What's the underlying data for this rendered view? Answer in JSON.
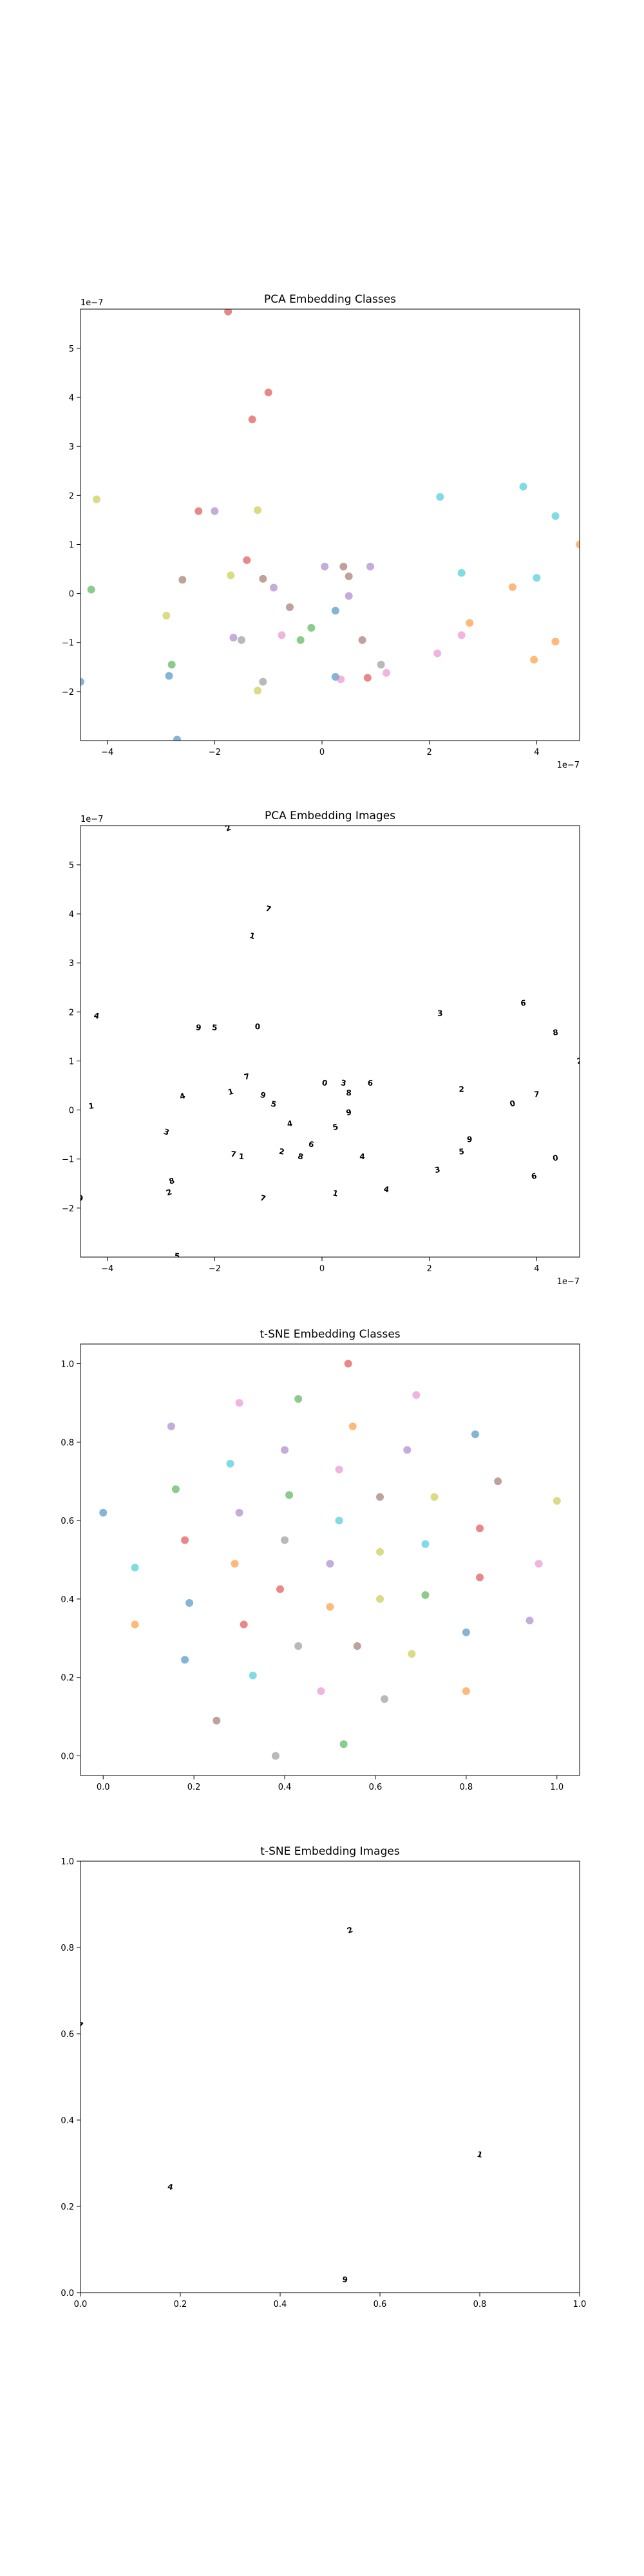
{
  "chart_data": [
    {
      "type": "scatter",
      "title": "PCA Embedding Classes",
      "x_multiplier_label": "1e−7",
      "y_multiplier_label": "1e−7",
      "xlim": [
        -4.5,
        4.8
      ],
      "ylim": [
        -3.0,
        5.8
      ],
      "xticks": [
        -4,
        -2,
        0,
        2,
        4
      ],
      "xtick_labels": [
        "−4",
        "−2",
        "0",
        "2",
        "4"
      ],
      "yticks": [
        -2,
        -1,
        0,
        1,
        2,
        3,
        4,
        5
      ],
      "ytick_labels": [
        "−2",
        "−1",
        "0",
        "1",
        "2",
        "3",
        "4",
        "5"
      ],
      "grid": false,
      "points": [
        {
          "x": -1.75,
          "y": 5.75,
          "color": "#d62728"
        },
        {
          "x": -1.0,
          "y": 4.1,
          "color": "#d62728"
        },
        {
          "x": -1.3,
          "y": 3.55,
          "color": "#d62728"
        },
        {
          "x": -4.2,
          "y": 1.92,
          "color": "#bcbd22"
        },
        {
          "x": -2.3,
          "y": 1.68,
          "color": "#d62728"
        },
        {
          "x": -2.0,
          "y": 1.68,
          "color": "#9467bd"
        },
        {
          "x": -1.2,
          "y": 1.7,
          "color": "#bcbd22"
        },
        {
          "x": 2.2,
          "y": 1.97,
          "color": "#17becf"
        },
        {
          "x": 3.75,
          "y": 2.18,
          "color": "#17becf"
        },
        {
          "x": 4.35,
          "y": 1.58,
          "color": "#17becf"
        },
        {
          "x": 4.8,
          "y": 1.0,
          "color": "#ff7f0e"
        },
        {
          "x": -1.4,
          "y": 0.68,
          "color": "#d62728"
        },
        {
          "x": -1.7,
          "y": 0.37,
          "color": "#bcbd22"
        },
        {
          "x": -2.6,
          "y": 0.28,
          "color": "#8c564b"
        },
        {
          "x": -1.1,
          "y": 0.3,
          "color": "#8c564b"
        },
        {
          "x": -0.9,
          "y": 0.12,
          "color": "#9467bd"
        },
        {
          "x": 0.05,
          "y": 0.55,
          "color": "#9467bd"
        },
        {
          "x": 0.4,
          "y": 0.55,
          "color": "#8c564b"
        },
        {
          "x": 0.9,
          "y": 0.55,
          "color": "#9467bd"
        },
        {
          "x": 0.5,
          "y": 0.35,
          "color": "#8c564b"
        },
        {
          "x": 2.6,
          "y": 0.42,
          "color": "#17becf"
        },
        {
          "x": 4.0,
          "y": 0.32,
          "color": "#17becf"
        },
        {
          "x": -4.3,
          "y": 0.08,
          "color": "#2ca02c"
        },
        {
          "x": -0.6,
          "y": -0.28,
          "color": "#8c564b"
        },
        {
          "x": 0.5,
          "y": -0.05,
          "color": "#9467bd"
        },
        {
          "x": 0.25,
          "y": -0.35,
          "color": "#1f77b4"
        },
        {
          "x": 3.55,
          "y": 0.13,
          "color": "#ff7f0e"
        },
        {
          "x": -2.9,
          "y": -0.45,
          "color": "#bcbd22"
        },
        {
          "x": -0.2,
          "y": -0.7,
          "color": "#2ca02c"
        },
        {
          "x": -0.4,
          "y": -0.95,
          "color": "#2ca02c"
        },
        {
          "x": -0.75,
          "y": -0.85,
          "color": "#e377c2"
        },
        {
          "x": -1.65,
          "y": -0.9,
          "color": "#9467bd"
        },
        {
          "x": -1.5,
          "y": -0.95,
          "color": "#7f7f7f"
        },
        {
          "x": 0.75,
          "y": -0.95,
          "color": "#8c564b"
        },
        {
          "x": 2.75,
          "y": -0.6,
          "color": "#ff7f0e"
        },
        {
          "x": 2.6,
          "y": -0.85,
          "color": "#e377c2"
        },
        {
          "x": 4.35,
          "y": -0.98,
          "color": "#ff7f0e"
        },
        {
          "x": 2.15,
          "y": -1.22,
          "color": "#e377c2"
        },
        {
          "x": 3.95,
          "y": -1.35,
          "color": "#ff7f0e"
        },
        {
          "x": -2.8,
          "y": -1.45,
          "color": "#2ca02c"
        },
        {
          "x": -2.85,
          "y": -1.68,
          "color": "#1f77b4"
        },
        {
          "x": -1.1,
          "y": -1.8,
          "color": "#7f7f7f"
        },
        {
          "x": -1.2,
          "y": -1.98,
          "color": "#bcbd22"
        },
        {
          "x": 0.25,
          "y": -1.7,
          "color": "#1f77b4"
        },
        {
          "x": 0.35,
          "y": -1.75,
          "color": "#e377c2"
        },
        {
          "x": 0.85,
          "y": -1.72,
          "color": "#d62728"
        },
        {
          "x": 1.1,
          "y": -1.45,
          "color": "#7f7f7f"
        },
        {
          "x": 1.2,
          "y": -1.62,
          "color": "#e377c2"
        },
        {
          "x": -4.5,
          "y": -1.8,
          "color": "#1f77b4"
        },
        {
          "x": -2.7,
          "y": -2.98,
          "color": "#1f77b4"
        }
      ]
    },
    {
      "type": "scatter",
      "title": "PCA Embedding Images",
      "x_multiplier_label": "1e−7",
      "y_multiplier_label": "1e−7",
      "xlim": [
        -4.5,
        4.8
      ],
      "ylim": [
        -3.0,
        5.8
      ],
      "xticks": [
        -4,
        -2,
        0,
        2,
        4
      ],
      "xtick_labels": [
        "−4",
        "−2",
        "0",
        "2",
        "4"
      ],
      "yticks": [
        -2,
        -1,
        0,
        1,
        2,
        3,
        4,
        5
      ],
      "ytick_labels": [
        "−2",
        "−1",
        "0",
        "1",
        "2",
        "3",
        "4",
        "5"
      ],
      "grid": false,
      "marker": "small digit image thumbnails (black strokes on transparent background)",
      "points": [
        {
          "x": -1.75,
          "y": 5.75
        },
        {
          "x": -1.0,
          "y": 4.1
        },
        {
          "x": -1.3,
          "y": 3.55
        },
        {
          "x": -4.2,
          "y": 1.92
        },
        {
          "x": -2.3,
          "y": 1.68
        },
        {
          "x": -2.0,
          "y": 1.68
        },
        {
          "x": -1.2,
          "y": 1.7
        },
        {
          "x": 2.2,
          "y": 1.97
        },
        {
          "x": 3.75,
          "y": 2.18
        },
        {
          "x": 4.35,
          "y": 1.58
        },
        {
          "x": 4.8,
          "y": 1.0
        },
        {
          "x": -1.4,
          "y": 0.68
        },
        {
          "x": -1.7,
          "y": 0.37
        },
        {
          "x": -2.6,
          "y": 0.28
        },
        {
          "x": -1.1,
          "y": 0.3
        },
        {
          "x": -0.9,
          "y": 0.12
        },
        {
          "x": 0.05,
          "y": 0.55
        },
        {
          "x": 0.4,
          "y": 0.55
        },
        {
          "x": 0.9,
          "y": 0.55
        },
        {
          "x": 0.5,
          "y": 0.35
        },
        {
          "x": 2.6,
          "y": 0.42
        },
        {
          "x": 4.0,
          "y": 0.32
        },
        {
          "x": -4.3,
          "y": 0.08
        },
        {
          "x": -0.6,
          "y": -0.28
        },
        {
          "x": 0.5,
          "y": -0.05
        },
        {
          "x": 0.25,
          "y": -0.35
        },
        {
          "x": 3.55,
          "y": 0.13
        },
        {
          "x": -2.9,
          "y": -0.45
        },
        {
          "x": -0.2,
          "y": -0.7
        },
        {
          "x": -0.4,
          "y": -0.95
        },
        {
          "x": -0.75,
          "y": -0.85
        },
        {
          "x": -1.65,
          "y": -0.9
        },
        {
          "x": -1.5,
          "y": -0.95
        },
        {
          "x": 0.75,
          "y": -0.95
        },
        {
          "x": 2.75,
          "y": -0.6
        },
        {
          "x": 2.6,
          "y": -0.85
        },
        {
          "x": 4.35,
          "y": -0.98
        },
        {
          "x": 2.15,
          "y": -1.22
        },
        {
          "x": 3.95,
          "y": -1.35
        },
        {
          "x": -2.8,
          "y": -1.45
        },
        {
          "x": -2.85,
          "y": -1.68
        },
        {
          "x": -1.1,
          "y": -1.8
        },
        {
          "x": 0.25,
          "y": -1.7
        },
        {
          "x": 1.2,
          "y": -1.62
        },
        {
          "x": -4.5,
          "y": -1.8
        },
        {
          "x": -2.7,
          "y": -2.98
        }
      ]
    },
    {
      "type": "scatter",
      "title": "t-SNE Embedding Classes",
      "xlim": [
        -0.05,
        1.05
      ],
      "ylim": [
        -0.05,
        1.05
      ],
      "xticks": [
        0.0,
        0.2,
        0.4,
        0.6,
        0.8,
        1.0
      ],
      "xtick_labels": [
        "0.0",
        "0.2",
        "0.4",
        "0.6",
        "0.8",
        "1.0"
      ],
      "yticks": [
        0.0,
        0.2,
        0.4,
        0.6,
        0.8,
        1.0
      ],
      "ytick_labels": [
        "0.0",
        "0.2",
        "0.4",
        "0.6",
        "0.8",
        "1.0"
      ],
      "grid": false,
      "points": [
        {
          "x": 0.54,
          "y": 1.0,
          "color": "#d62728"
        },
        {
          "x": 0.69,
          "y": 0.92,
          "color": "#e377c2"
        },
        {
          "x": 0.43,
          "y": 0.91,
          "color": "#2ca02c"
        },
        {
          "x": 0.3,
          "y": 0.9,
          "color": "#e377c2"
        },
        {
          "x": 0.55,
          "y": 0.84,
          "color": "#ff7f0e"
        },
        {
          "x": 0.15,
          "y": 0.84,
          "color": "#9467bd"
        },
        {
          "x": 0.82,
          "y": 0.82,
          "color": "#1f77b4"
        },
        {
          "x": 0.4,
          "y": 0.78,
          "color": "#9467bd"
        },
        {
          "x": 0.67,
          "y": 0.78,
          "color": "#9467bd"
        },
        {
          "x": 0.28,
          "y": 0.745,
          "color": "#17becf"
        },
        {
          "x": 0.52,
          "y": 0.73,
          "color": "#e377c2"
        },
        {
          "x": 0.87,
          "y": 0.7,
          "color": "#8c564b"
        },
        {
          "x": 0.16,
          "y": 0.68,
          "color": "#2ca02c"
        },
        {
          "x": 0.41,
          "y": 0.665,
          "color": "#2ca02c"
        },
        {
          "x": 0.61,
          "y": 0.66,
          "color": "#8c564b"
        },
        {
          "x": 0.73,
          "y": 0.66,
          "color": "#bcbd22"
        },
        {
          "x": 1.0,
          "y": 0.65,
          "color": "#bcbd22"
        },
        {
          "x": 0.0,
          "y": 0.62,
          "color": "#1f77b4"
        },
        {
          "x": 0.3,
          "y": 0.62,
          "color": "#9467bd"
        },
        {
          "x": 0.52,
          "y": 0.6,
          "color": "#17becf"
        },
        {
          "x": 0.83,
          "y": 0.58,
          "color": "#d62728"
        },
        {
          "x": 0.18,
          "y": 0.55,
          "color": "#d62728"
        },
        {
          "x": 0.4,
          "y": 0.55,
          "color": "#7f7f7f"
        },
        {
          "x": 0.71,
          "y": 0.54,
          "color": "#17becf"
        },
        {
          "x": 0.61,
          "y": 0.52,
          "color": "#bcbd22"
        },
        {
          "x": 0.07,
          "y": 0.48,
          "color": "#17becf"
        },
        {
          "x": 0.29,
          "y": 0.49,
          "color": "#ff7f0e"
        },
        {
          "x": 0.5,
          "y": 0.49,
          "color": "#9467bd"
        },
        {
          "x": 0.96,
          "y": 0.49,
          "color": "#e377c2"
        },
        {
          "x": 0.83,
          "y": 0.455,
          "color": "#d62728"
        },
        {
          "x": 0.39,
          "y": 0.425,
          "color": "#d62728"
        },
        {
          "x": 0.71,
          "y": 0.41,
          "color": "#2ca02c"
        },
        {
          "x": 0.61,
          "y": 0.4,
          "color": "#bcbd22"
        },
        {
          "x": 0.19,
          "y": 0.39,
          "color": "#1f77b4"
        },
        {
          "x": 0.5,
          "y": 0.38,
          "color": "#ff7f0e"
        },
        {
          "x": 0.94,
          "y": 0.345,
          "color": "#9467bd"
        },
        {
          "x": 0.07,
          "y": 0.335,
          "color": "#ff7f0e"
        },
        {
          "x": 0.31,
          "y": 0.335,
          "color": "#d62728"
        },
        {
          "x": 0.8,
          "y": 0.315,
          "color": "#1f77b4"
        },
        {
          "x": 0.43,
          "y": 0.28,
          "color": "#7f7f7f"
        },
        {
          "x": 0.56,
          "y": 0.28,
          "color": "#8c564b"
        },
        {
          "x": 0.68,
          "y": 0.26,
          "color": "#bcbd22"
        },
        {
          "x": 0.18,
          "y": 0.245,
          "color": "#1f77b4"
        },
        {
          "x": 0.33,
          "y": 0.205,
          "color": "#17becf"
        },
        {
          "x": 0.48,
          "y": 0.165,
          "color": "#e377c2"
        },
        {
          "x": 0.8,
          "y": 0.165,
          "color": "#ff7f0e"
        },
        {
          "x": 0.62,
          "y": 0.145,
          "color": "#7f7f7f"
        },
        {
          "x": 0.25,
          "y": 0.09,
          "color": "#8c564b"
        },
        {
          "x": 0.53,
          "y": 0.03,
          "color": "#2ca02c"
        },
        {
          "x": 0.38,
          "y": 0.0,
          "color": "#7f7f7f"
        }
      ]
    },
    {
      "type": "scatter",
      "title": "t-SNE Embedding Images",
      "xlim": [
        0.0,
        1.0
      ],
      "ylim": [
        0.0,
        1.0
      ],
      "xticks": [
        0.0,
        0.2,
        0.4,
        0.6,
        0.8,
        1.0
      ],
      "xtick_labels": [
        "0.0",
        "0.2",
        "0.4",
        "0.6",
        "0.8",
        "1.0"
      ],
      "yticks": [
        0.0,
        0.2,
        0.4,
        0.6,
        0.8,
        1.0
      ],
      "ytick_labels": [
        "0.0",
        "0.2",
        "0.4",
        "0.6",
        "0.8",
        "1.0"
      ],
      "grid": false,
      "marker": "small digit image thumbnails (black strokes on transparent background)",
      "points": [
        {
          "x": 0.54,
          "y": 0.84
        },
        {
          "x": 0.0,
          "y": 0.62
        },
        {
          "x": 0.8,
          "y": 0.32
        },
        {
          "x": 0.18,
          "y": 0.245
        },
        {
          "x": 0.53,
          "y": 0.03
        }
      ]
    }
  ]
}
